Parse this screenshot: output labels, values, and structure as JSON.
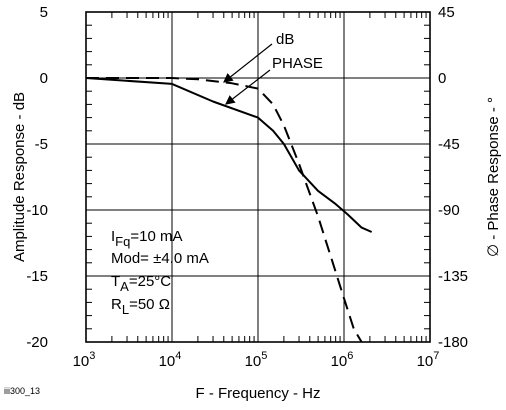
{
  "figure_id": "iii300_13",
  "chart_data": {
    "type": "line",
    "x_scale": "log",
    "xlim_exp": [
      3,
      7
    ],
    "x_ticks": [
      {
        "base": "10",
        "exp": "3"
      },
      {
        "base": "10",
        "exp": "4"
      },
      {
        "base": "10",
        "exp": "5"
      },
      {
        "base": "10",
        "exp": "6"
      },
      {
        "base": "10",
        "exp": "7"
      }
    ],
    "xlabel": "F - Frequency - Hz",
    "ylabel_left": "Amplitude Response - dB",
    "ylabel_right": "∅ - Phase Response - °",
    "ylim_left": [
      -20,
      5
    ],
    "ylim_right": [
      -180,
      45
    ],
    "yticks_left": [
      "5",
      "0",
      "-5",
      "-10",
      "-15",
      "-20"
    ],
    "yticks_right": [
      "45",
      "0",
      "-45",
      "-90",
      "-135",
      "-180"
    ],
    "grid": true,
    "series": [
      {
        "name": "dB",
        "axis": "left",
        "style": "dashed",
        "x": [
          1000,
          10000,
          20000,
          50000,
          100000,
          150000,
          200000,
          300000,
          500000,
          700000,
          1000000,
          1300000,
          1600000
        ],
        "y": [
          0,
          0,
          -0.1,
          -0.4,
          -0.8,
          -2.0,
          -3.6,
          -6.5,
          -10.5,
          -13.5,
          -16.7,
          -19.0,
          -20.0
        ]
      },
      {
        "name": "PHASE",
        "axis": "right",
        "style": "solid",
        "x": [
          1000,
          10000,
          30000,
          100000,
          150000,
          200000,
          300000,
          500000,
          800000,
          1100000,
          1600000,
          2100000
        ],
        "y": [
          0,
          -4,
          -16,
          -27,
          -36,
          -45,
          -63,
          -77,
          -86,
          -93,
          -102,
          -105
        ]
      }
    ],
    "annotations": [
      {
        "main": "I",
        "sub": "Fq",
        "rest": "=10 mA"
      },
      {
        "main": "Mod= ±4.0 mA",
        "sub": "",
        "rest": ""
      },
      {
        "main": "T",
        "sub": "A",
        "rest": "=25°C"
      },
      {
        "main": "R",
        "sub": "L",
        "rest": "=50 Ω"
      }
    ]
  }
}
